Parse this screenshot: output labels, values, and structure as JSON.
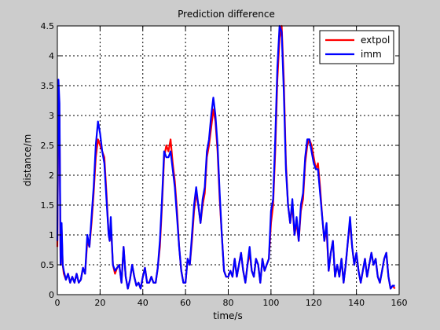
{
  "chart_data": {
    "type": "line",
    "title": "Prediction difference",
    "xlabel": "time/s",
    "ylabel": "distance/m",
    "xlim": [
      0,
      160
    ],
    "ylim": [
      0,
      4.5
    ],
    "xticks": [
      0,
      20,
      40,
      60,
      80,
      100,
      120,
      140,
      160
    ],
    "yticks": [
      0,
      0.5,
      1,
      1.5,
      2,
      2.5,
      3,
      3.5,
      4,
      4.5
    ],
    "xtick_labels": [
      "0",
      "20",
      "40",
      "60",
      "80",
      "100",
      "120",
      "140",
      "160"
    ],
    "ytick_labels": [
      "0",
      "0.5",
      "1",
      "1.5",
      "2",
      "2.5",
      "3",
      "3.5",
      "4",
      "4.5"
    ],
    "grid": true,
    "legend_position": "top-right",
    "series": [
      {
        "name": "extpol",
        "color": "#ff0000",
        "points": [
          [
            0,
            0.8
          ],
          [
            0.5,
            3.3
          ],
          [
            1,
            3.0
          ],
          [
            1.5,
            0.5
          ],
          [
            2,
            1.1
          ],
          [
            2.5,
            0.5
          ],
          [
            3,
            0.35
          ],
          [
            4,
            0.25
          ],
          [
            5,
            0.35
          ],
          [
            6,
            0.2
          ],
          [
            7,
            0.3
          ],
          [
            8,
            0.2
          ],
          [
            9,
            0.35
          ],
          [
            10,
            0.2
          ],
          [
            11,
            0.25
          ],
          [
            12,
            0.45
          ],
          [
            13,
            0.35
          ],
          [
            14,
            0.9
          ],
          [
            15,
            0.8
          ],
          [
            16,
            1.2
          ],
          [
            17,
            1.7
          ],
          [
            18,
            2.3
          ],
          [
            19,
            2.6
          ],
          [
            20,
            2.5
          ],
          [
            21,
            2.4
          ],
          [
            22,
            2.3
          ],
          [
            23,
            1.7
          ],
          [
            24,
            1.0
          ],
          [
            24.5,
            0.9
          ],
          [
            25,
            1.2
          ],
          [
            26,
            0.5
          ],
          [
            27,
            0.35
          ],
          [
            28,
            0.45
          ],
          [
            29,
            0.5
          ],
          [
            30,
            0.2
          ],
          [
            31,
            0.8
          ],
          [
            32,
            0.3
          ],
          [
            33,
            0.1
          ],
          [
            34,
            0.25
          ],
          [
            35,
            0.5
          ],
          [
            36,
            0.3
          ],
          [
            37,
            0.15
          ],
          [
            38,
            0.2
          ],
          [
            39,
            0.1
          ],
          [
            40,
            0.3
          ],
          [
            41,
            0.45
          ],
          [
            42,
            0.2
          ],
          [
            43,
            0.2
          ],
          [
            44,
            0.3
          ],
          [
            45,
            0.2
          ],
          [
            46,
            0.2
          ],
          [
            47,
            0.45
          ],
          [
            48,
            0.8
          ],
          [
            49,
            1.5
          ],
          [
            50,
            2.3
          ],
          [
            51,
            2.5
          ],
          [
            52,
            2.4
          ],
          [
            53,
            2.6
          ],
          [
            54,
            2.2
          ],
          [
            55,
            1.9
          ],
          [
            56,
            1.4
          ],
          [
            57,
            0.8
          ],
          [
            58,
            0.4
          ],
          [
            59,
            0.2
          ],
          [
            60,
            0.2
          ],
          [
            61,
            0.6
          ],
          [
            62,
            0.5
          ],
          [
            63,
            0.9
          ],
          [
            64,
            1.4
          ],
          [
            65,
            1.7
          ],
          [
            66,
            1.5
          ],
          [
            67,
            1.2
          ],
          [
            68,
            1.5
          ],
          [
            69,
            1.7
          ],
          [
            70,
            2.3
          ],
          [
            71,
            2.5
          ],
          [
            72,
            2.8
          ],
          [
            73,
            3.1
          ],
          [
            74,
            2.9
          ],
          [
            75,
            2.4
          ],
          [
            76,
            1.6
          ],
          [
            77,
            1.0
          ],
          [
            78,
            0.4
          ],
          [
            79,
            0.3
          ],
          [
            80,
            0.3
          ],
          [
            81,
            0.4
          ],
          [
            82,
            0.3
          ],
          [
            83,
            0.6
          ],
          [
            84,
            0.3
          ],
          [
            85,
            0.5
          ],
          [
            86,
            0.7
          ],
          [
            87,
            0.4
          ],
          [
            88,
            0.2
          ],
          [
            89,
            0.5
          ],
          [
            90,
            0.7
          ],
          [
            91,
            0.4
          ],
          [
            92,
            0.3
          ],
          [
            93,
            0.6
          ],
          [
            94,
            0.5
          ],
          [
            95,
            0.2
          ],
          [
            96,
            0.6
          ],
          [
            97,
            0.4
          ],
          [
            98,
            0.5
          ],
          [
            99,
            0.6
          ],
          [
            100,
            1.2
          ],
          [
            101,
            1.5
          ],
          [
            102,
            2.4
          ],
          [
            103,
            3.6
          ],
          [
            104,
            4.3
          ],
          [
            105,
            4.5
          ],
          [
            106,
            3.6
          ],
          [
            107,
            2.2
          ],
          [
            108,
            1.5
          ],
          [
            109,
            1.2
          ],
          [
            110,
            1.5
          ],
          [
            111,
            1.0
          ],
          [
            112,
            1.2
          ],
          [
            113,
            0.9
          ],
          [
            114,
            1.4
          ],
          [
            115,
            1.6
          ],
          [
            116,
            2.2
          ],
          [
            117,
            2.5
          ],
          [
            118,
            2.6
          ],
          [
            119,
            2.5
          ],
          [
            120,
            2.3
          ],
          [
            121,
            2.1
          ],
          [
            122,
            2.2
          ],
          [
            123,
            1.8
          ],
          [
            124,
            1.3
          ],
          [
            125,
            0.9
          ],
          [
            126,
            1.1
          ],
          [
            127,
            0.4
          ],
          [
            128,
            0.7
          ],
          [
            129,
            0.9
          ],
          [
            130,
            0.3
          ],
          [
            131,
            0.5
          ],
          [
            132,
            0.3
          ],
          [
            133,
            0.6
          ],
          [
            134,
            0.2
          ],
          [
            135,
            0.5
          ],
          [
            136,
            0.9
          ],
          [
            137,
            1.2
          ],
          [
            138,
            0.8
          ],
          [
            139,
            0.5
          ],
          [
            140,
            0.7
          ],
          [
            141,
            0.4
          ],
          [
            142,
            0.2
          ],
          [
            143,
            0.4
          ],
          [
            144,
            0.6
          ],
          [
            145,
            0.3
          ],
          [
            146,
            0.5
          ],
          [
            147,
            0.7
          ],
          [
            148,
            0.5
          ],
          [
            149,
            0.6
          ],
          [
            150,
            0.3
          ],
          [
            151,
            0.2
          ],
          [
            152,
            0.4
          ],
          [
            153,
            0.6
          ],
          [
            154,
            0.7
          ],
          [
            155,
            0.3
          ],
          [
            156,
            0.1
          ],
          [
            157,
            0.15
          ],
          [
            158,
            0.1
          ]
        ]
      },
      {
        "name": "imm",
        "color": "#0000ff",
        "points": [
          [
            0,
            0.9
          ],
          [
            0.5,
            3.6
          ],
          [
            1,
            3.2
          ],
          [
            1.5,
            0.5
          ],
          [
            2,
            1.2
          ],
          [
            2.5,
            0.5
          ],
          [
            3,
            0.4
          ],
          [
            4,
            0.25
          ],
          [
            5,
            0.35
          ],
          [
            6,
            0.2
          ],
          [
            7,
            0.3
          ],
          [
            8,
            0.2
          ],
          [
            9,
            0.35
          ],
          [
            10,
            0.2
          ],
          [
            11,
            0.25
          ],
          [
            12,
            0.45
          ],
          [
            13,
            0.35
          ],
          [
            14,
            1.0
          ],
          [
            15,
            0.8
          ],
          [
            16,
            1.3
          ],
          [
            17,
            1.8
          ],
          [
            18,
            2.5
          ],
          [
            19,
            2.9
          ],
          [
            20,
            2.7
          ],
          [
            21,
            2.4
          ],
          [
            22,
            2.2
          ],
          [
            23,
            1.6
          ],
          [
            24,
            1.0
          ],
          [
            24.5,
            0.9
          ],
          [
            25,
            1.3
          ],
          [
            26,
            0.5
          ],
          [
            27,
            0.4
          ],
          [
            28,
            0.45
          ],
          [
            29,
            0.5
          ],
          [
            30,
            0.2
          ],
          [
            31,
            0.8
          ],
          [
            32,
            0.3
          ],
          [
            33,
            0.1
          ],
          [
            34,
            0.25
          ],
          [
            35,
            0.5
          ],
          [
            36,
            0.3
          ],
          [
            37,
            0.15
          ],
          [
            38,
            0.2
          ],
          [
            39,
            0.1
          ],
          [
            40,
            0.3
          ],
          [
            41,
            0.45
          ],
          [
            42,
            0.2
          ],
          [
            43,
            0.2
          ],
          [
            44,
            0.3
          ],
          [
            45,
            0.2
          ],
          [
            46,
            0.2
          ],
          [
            47,
            0.45
          ],
          [
            48,
            0.9
          ],
          [
            49,
            1.6
          ],
          [
            50,
            2.4
          ],
          [
            51,
            2.3
          ],
          [
            52,
            2.3
          ],
          [
            53,
            2.4
          ],
          [
            54,
            2.1
          ],
          [
            55,
            1.8
          ],
          [
            56,
            1.3
          ],
          [
            57,
            0.8
          ],
          [
            58,
            0.4
          ],
          [
            59,
            0.2
          ],
          [
            60,
            0.2
          ],
          [
            61,
            0.6
          ],
          [
            62,
            0.5
          ],
          [
            63,
            1.0
          ],
          [
            64,
            1.5
          ],
          [
            65,
            1.8
          ],
          [
            66,
            1.5
          ],
          [
            67,
            1.2
          ],
          [
            68,
            1.6
          ],
          [
            69,
            1.8
          ],
          [
            70,
            2.4
          ],
          [
            71,
            2.6
          ],
          [
            72,
            3.0
          ],
          [
            73,
            3.3
          ],
          [
            74,
            3.0
          ],
          [
            75,
            2.5
          ],
          [
            76,
            1.7
          ],
          [
            77,
            1.0
          ],
          [
            78,
            0.4
          ],
          [
            79,
            0.3
          ],
          [
            80,
            0.3
          ],
          [
            81,
            0.4
          ],
          [
            82,
            0.3
          ],
          [
            83,
            0.6
          ],
          [
            84,
            0.3
          ],
          [
            85,
            0.5
          ],
          [
            86,
            0.7
          ],
          [
            87,
            0.4
          ],
          [
            88,
            0.2
          ],
          [
            89,
            0.5
          ],
          [
            90,
            0.8
          ],
          [
            91,
            0.4
          ],
          [
            92,
            0.3
          ],
          [
            93,
            0.6
          ],
          [
            94,
            0.5
          ],
          [
            95,
            0.2
          ],
          [
            96,
            0.6
          ],
          [
            97,
            0.4
          ],
          [
            98,
            0.5
          ],
          [
            99,
            0.6
          ],
          [
            100,
            1.4
          ],
          [
            101,
            1.6
          ],
          [
            102,
            2.6
          ],
          [
            103,
            3.8
          ],
          [
            104,
            4.5
          ],
          [
            105,
            4.4
          ],
          [
            106,
            3.4
          ],
          [
            107,
            2.1
          ],
          [
            108,
            1.5
          ],
          [
            109,
            1.2
          ],
          [
            110,
            1.6
          ],
          [
            111,
            1.0
          ],
          [
            112,
            1.3
          ],
          [
            113,
            0.9
          ],
          [
            114,
            1.5
          ],
          [
            115,
            1.7
          ],
          [
            116,
            2.3
          ],
          [
            117,
            2.6
          ],
          [
            118,
            2.6
          ],
          [
            119,
            2.4
          ],
          [
            120,
            2.2
          ],
          [
            121,
            2.1
          ],
          [
            122,
            2.1
          ],
          [
            123,
            1.7
          ],
          [
            124,
            1.3
          ],
          [
            125,
            0.9
          ],
          [
            126,
            1.2
          ],
          [
            127,
            0.4
          ],
          [
            128,
            0.7
          ],
          [
            129,
            0.9
          ],
          [
            130,
            0.3
          ],
          [
            131,
            0.5
          ],
          [
            132,
            0.3
          ],
          [
            133,
            0.6
          ],
          [
            134,
            0.2
          ],
          [
            135,
            0.5
          ],
          [
            136,
            0.9
          ],
          [
            137,
            1.3
          ],
          [
            138,
            0.8
          ],
          [
            139,
            0.5
          ],
          [
            140,
            0.7
          ],
          [
            141,
            0.4
          ],
          [
            142,
            0.2
          ],
          [
            143,
            0.4
          ],
          [
            144,
            0.6
          ],
          [
            145,
            0.3
          ],
          [
            146,
            0.5
          ],
          [
            147,
            0.7
          ],
          [
            148,
            0.5
          ],
          [
            149,
            0.6
          ],
          [
            150,
            0.3
          ],
          [
            151,
            0.2
          ],
          [
            152,
            0.4
          ],
          [
            153,
            0.6
          ],
          [
            154,
            0.7
          ],
          [
            155,
            0.3
          ],
          [
            156,
            0.1
          ],
          [
            157,
            0.15
          ],
          [
            158,
            0.15
          ]
        ]
      }
    ]
  }
}
